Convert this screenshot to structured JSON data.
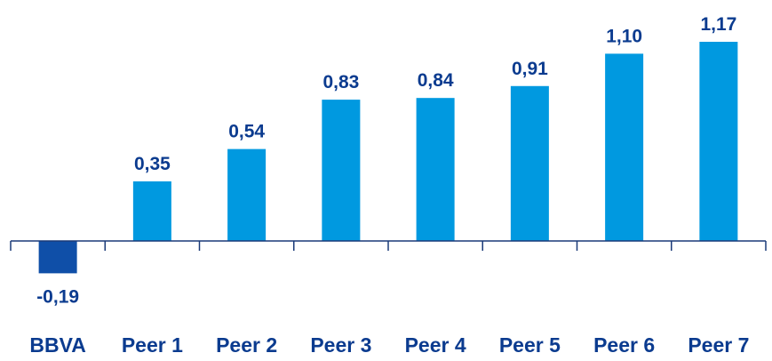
{
  "chart_data": {
    "type": "bar",
    "categories": [
      "BBVA",
      "Peer 1",
      "Peer 2",
      "Peer 3",
      "Peer 4",
      "Peer 5",
      "Peer 6",
      "Peer 7"
    ],
    "values": [
      -0.19,
      0.35,
      0.54,
      0.83,
      0.84,
      0.91,
      1.1,
      1.17
    ],
    "value_labels": [
      "-0,19",
      "0,35",
      "0,54",
      "0,83",
      "0,84",
      "0,91",
      "1,10",
      "1,17"
    ],
    "title": "",
    "xlabel": "",
    "ylabel": "",
    "ylim": [
      -0.19,
      1.17
    ],
    "grid": false,
    "legend": "none",
    "colors": {
      "highlight_bar": "#0f4fa8",
      "bar": "#0099e0",
      "label": "#0b3b8f",
      "axis": "#1a3a78"
    }
  }
}
